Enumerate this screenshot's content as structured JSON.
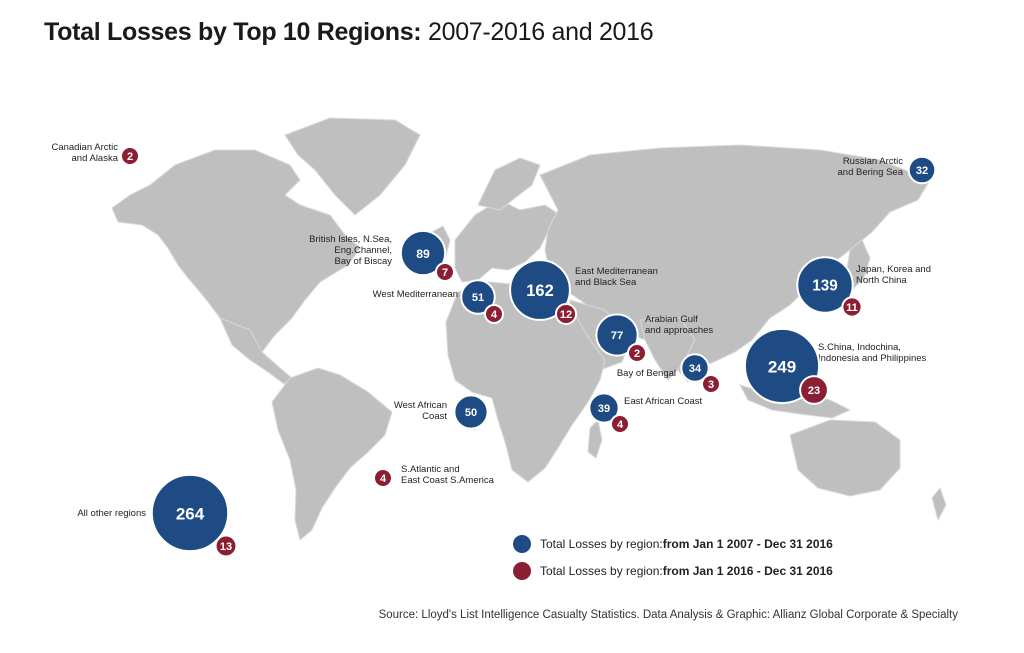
{
  "title": {
    "bold": "Total Losses by Top 10 Regions:",
    "rest": " 2007-2016 and 2016"
  },
  "colors": {
    "period_2007_2016": "#1f4b85",
    "period_2016": "#8b1e32",
    "land": "#bfbfbf"
  },
  "regions": [
    {
      "name": [
        "Canadian Arctic",
        "and Alaska"
      ],
      "losses_2007_2016": null,
      "losses_2016": 2
    },
    {
      "name": [
        "Russian Arctic",
        "and Bering Sea"
      ],
      "losses_2007_2016": 32,
      "losses_2016": null
    },
    {
      "name": [
        "British Isles, N.Sea,",
        "Eng.Channel,",
        "Bay of Biscay"
      ],
      "losses_2007_2016": 89,
      "losses_2016": 7
    },
    {
      "name": [
        "West Mediterranean"
      ],
      "losses_2007_2016": 51,
      "losses_2016": 4
    },
    {
      "name": [
        "East Mediterranean",
        "and Black Sea"
      ],
      "losses_2007_2016": 162,
      "losses_2016": 12
    },
    {
      "name": [
        "Japan, Korea and",
        "North China"
      ],
      "losses_2007_2016": 139,
      "losses_2016": 11
    },
    {
      "name": [
        "Arabian Gulf",
        "and approaches"
      ],
      "losses_2007_2016": 77,
      "losses_2016": 2
    },
    {
      "name": [
        "S.China, Indochina,",
        "Indonesia and Philippines"
      ],
      "losses_2007_2016": 249,
      "losses_2016": 23
    },
    {
      "name": [
        "Bay of Bengal"
      ],
      "losses_2007_2016": 34,
      "losses_2016": 3
    },
    {
      "name": [
        "East African Coast"
      ],
      "losses_2007_2016": 39,
      "losses_2016": 4
    },
    {
      "name": [
        "West African",
        "Coast"
      ],
      "losses_2007_2016": 50,
      "losses_2016": null
    },
    {
      "name": [
        "S.Atlantic and",
        "East Coast S.America"
      ],
      "losses_2007_2016": null,
      "losses_2016": 4
    },
    {
      "name": [
        "All other regions"
      ],
      "losses_2007_2016": 264,
      "losses_2016": 13
    }
  ],
  "legend": [
    {
      "text": "Total Losses by region: ",
      "bold": "from Jan 1 2007 - Dec 31 2016",
      "color": "#1f4b85"
    },
    {
      "text": "Total Losses by region: ",
      "bold": "from Jan 1 2016 - Dec 31 2016",
      "color": "#8b1e32"
    }
  ],
  "source": "Source: Lloyd's List Intelligence Casualty Statistics.  Data Analysis & Graphic: Allianz Global Corporate & Specialty"
}
